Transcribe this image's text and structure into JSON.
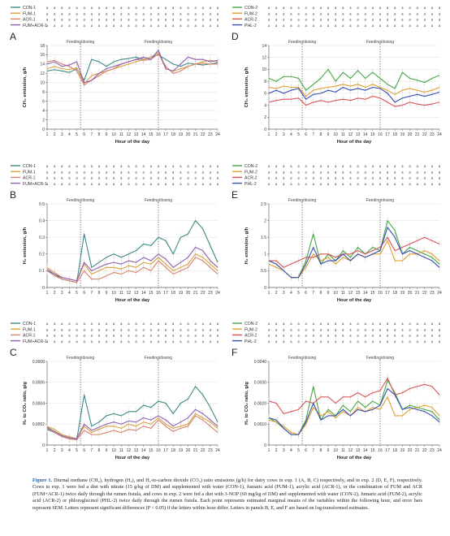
{
  "hours": [
    1,
    2,
    3,
    4,
    5,
    6,
    7,
    8,
    9,
    10,
    11,
    12,
    13,
    14,
    15,
    16,
    17,
    18,
    19,
    20,
    21,
    22,
    23,
    24
  ],
  "x_axis_label": "Hour of the day",
  "feeding_label": "Feeding/dosing",
  "feeding_hours": [
    5.5,
    16
  ],
  "caption": {
    "figure_label": "Figure 1.",
    "text": " Diurnal methane (CH₄), hydrogen (H₂), and H₂-to-carbon dioxide (CO₂) ratio emissions (g/h) for dairy cows in exp. 1 (A, B, C) respectively, and in exp. 2 (D, E, F), respectively. Cows in exp. 1 were fed a diet with nitrate (15 g/kg of DM) and supplemented with water (CON-1), fumaric acid (FUM-1), acrylic acid (ACR-1), or the combination of FUM and ACR (FUM+ACR-1) twice daily through the rumen fistula, and cows in exp. 2 were fed a diet with 3-NOP (60 mg/kg of DM) and supplemented with water (CON-2), fumaric acid (FUM-2), acrylic acid (ACR-2) or phloroglucinol (PHL-2) twice daily through the rumen fistula. Each point represents estimated marginal means of the variables within the following hour, and error bars represent SEM. Letters represent significant differences (P < 0.05) if the letters within hour differ. Letters in panels B, E, and F are based on log-transformed estimates."
  },
  "chart_data": [
    {
      "panel": "A",
      "type": "line",
      "ylabel": "CH₄ emission, g/h",
      "ylim": [
        0,
        18
      ],
      "yticks": [
        0,
        2,
        4,
        6,
        8,
        10,
        12,
        14,
        16,
        18
      ],
      "x": [
        1,
        2,
        3,
        4,
        5,
        6,
        7,
        8,
        9,
        10,
        11,
        12,
        13,
        14,
        15,
        16,
        17,
        18,
        19,
        20,
        21,
        22,
        23,
        24
      ],
      "legend": [
        "CON-1",
        "FUM-1",
        "ACR-1",
        "FUM+ACR-1"
      ],
      "letter_rows": [
        "aaaaaaaaaaaaaaaaaaaaaaaa",
        "aaaaaaaaaaaaaaaaaaaaaaaa",
        "aaaaaaaaaaaaaaaaaaaaaaaa",
        "aaaaaaaaaaaaaaaaaaaaaaaa"
      ],
      "series": [
        {
          "name": "CON-1",
          "color": "#3d8a85",
          "values": [
            12.5,
            12.8,
            12.5,
            12.2,
            13.0,
            10.5,
            15.0,
            14.5,
            13.5,
            14.5,
            15.0,
            15.2,
            15.5,
            15.0,
            15.5,
            16.0,
            15.0,
            14.0,
            13.5,
            14.2,
            14.0,
            13.8,
            14.0,
            14.3
          ]
        },
        {
          "name": "FUM-1",
          "color": "#d9a23c",
          "values": [
            13.0,
            13.5,
            13.0,
            12.8,
            13.2,
            9.8,
            11.5,
            12.0,
            12.5,
            13.0,
            13.5,
            14.0,
            14.5,
            15.0,
            15.5,
            16.5,
            13.0,
            12.5,
            13.0,
            13.5,
            14.0,
            14.5,
            14.8,
            14.5
          ]
        },
        {
          "name": "ACR-1",
          "color": "#d9826c",
          "values": [
            14.5,
            14.8,
            14.0,
            13.5,
            12.5,
            9.5,
            10.5,
            11.5,
            12.5,
            13.0,
            14.0,
            14.5,
            15.0,
            14.8,
            15.0,
            16.2,
            13.5,
            12.0,
            12.5,
            13.5,
            14.0,
            14.2,
            14.0,
            14.0
          ]
        },
        {
          "name": "FUM+ACR-1",
          "color": "#8d5fb0",
          "values": [
            14.0,
            14.5,
            13.5,
            13.8,
            14.5,
            10.0,
            10.5,
            12.0,
            13.0,
            13.5,
            14.0,
            14.5,
            15.0,
            15.5,
            15.0,
            17.0,
            13.0,
            12.5,
            14.0,
            15.5,
            15.0,
            15.0,
            14.5,
            14.8
          ]
        }
      ]
    },
    {
      "panel": "B",
      "type": "line",
      "ylabel": "H₂ emission, g/h",
      "ylim": [
        0,
        0.5
      ],
      "yticks": [
        0,
        0.1,
        0.2,
        0.3,
        0.4,
        0.5
      ],
      "x": [
        1,
        2,
        3,
        4,
        5,
        6,
        7,
        8,
        9,
        10,
        11,
        12,
        13,
        14,
        15,
        16,
        17,
        18,
        19,
        20,
        21,
        22,
        23,
        24
      ],
      "legend": [
        "CON-1",
        "FUM-1",
        "ACR-1",
        "FUM+ACR-1"
      ],
      "letter_rows": [
        "aaaaaaaaaaaaaaaaaaaaaaaa",
        "aaaaaaaaaaaaaaaaaaaaaaaa",
        "aaaaaaaaaaaaaaaaaaaaaaaa",
        "aaaaaaaaaaaaaaaaaaaaaaaa"
      ],
      "series": [
        {
          "name": "CON-1",
          "color": "#3d8a85",
          "values": [
            0.1,
            0.08,
            0.05,
            0.04,
            0.03,
            0.32,
            0.12,
            0.15,
            0.18,
            0.2,
            0.18,
            0.2,
            0.22,
            0.26,
            0.25,
            0.3,
            0.28,
            0.2,
            0.3,
            0.32,
            0.4,
            0.35,
            0.25,
            0.15
          ]
        },
        {
          "name": "FUM-1",
          "color": "#d9a23c",
          "values": [
            0.12,
            0.09,
            0.06,
            0.05,
            0.04,
            0.14,
            0.08,
            0.1,
            0.12,
            0.12,
            0.11,
            0.13,
            0.12,
            0.15,
            0.14,
            0.18,
            0.14,
            0.1,
            0.12,
            0.14,
            0.2,
            0.18,
            0.14,
            0.1
          ]
        },
        {
          "name": "ACR-1",
          "color": "#d9826c",
          "values": [
            0.1,
            0.07,
            0.05,
            0.04,
            0.03,
            0.1,
            0.05,
            0.05,
            0.07,
            0.09,
            0.08,
            0.1,
            0.09,
            0.12,
            0.1,
            0.16,
            0.12,
            0.08,
            0.1,
            0.12,
            0.18,
            0.16,
            0.12,
            0.08
          ]
        },
        {
          "name": "FUM+ACR-1",
          "color": "#8d5fb0",
          "values": [
            0.11,
            0.08,
            0.06,
            0.05,
            0.04,
            0.15,
            0.1,
            0.12,
            0.14,
            0.15,
            0.14,
            0.16,
            0.15,
            0.18,
            0.16,
            0.2,
            0.17,
            0.12,
            0.15,
            0.18,
            0.24,
            0.22,
            0.16,
            0.12
          ]
        }
      ]
    },
    {
      "panel": "C",
      "type": "line",
      "ylabel": "H₂ to CO₂ ratio, g/g",
      "ylim": [
        0,
        0.0008
      ],
      "yticks": [
        0,
        0.0002,
        0.0004,
        0.0006,
        0.0008
      ],
      "x": [
        1,
        2,
        3,
        4,
        5,
        6,
        7,
        8,
        9,
        10,
        11,
        12,
        13,
        14,
        15,
        16,
        17,
        18,
        19,
        20,
        21,
        22,
        23,
        24
      ],
      "legend": [
        "CON-1",
        "FUM-1",
        "ACR-1",
        "FUM+ACR-1"
      ],
      "letter_rows": [
        "aaaaaaaaaaaaaaaaaaaaaaaa",
        "aaaaaaaaaaaaaaaaaaaaaaaa",
        "aaaaaaaaaaaaaaaaaaaaaaaa",
        "aaaaaaaaaaaaaaaaaaaaaaaa"
      ],
      "series": [
        {
          "name": "CON-1",
          "color": "#3d8a85",
          "values": [
            0.00015,
            0.00012,
            8e-05,
            6e-05,
            5e-05,
            0.00048,
            0.00018,
            0.00022,
            0.00028,
            0.0003,
            0.00028,
            0.00032,
            0.00032,
            0.00038,
            0.00036,
            0.00042,
            0.0004,
            0.0003,
            0.0004,
            0.00044,
            0.00056,
            0.00048,
            0.00036,
            0.00022
          ]
        },
        {
          "name": "FUM-1",
          "color": "#d9a23c",
          "values": [
            0.00018,
            0.00015,
            0.0001,
            8e-05,
            6e-05,
            0.00018,
            0.00012,
            0.00015,
            0.00018,
            0.00018,
            0.00016,
            0.0002,
            0.00018,
            0.00022,
            0.0002,
            0.00026,
            0.0002,
            0.00016,
            0.00018,
            0.0002,
            0.0003,
            0.00026,
            0.00022,
            0.00016
          ]
        },
        {
          "name": "ACR-1",
          "color": "#d9826c",
          "values": [
            0.00016,
            0.00012,
            8e-05,
            6e-05,
            5e-05,
            0.00014,
            0.0001,
            0.0001,
            0.00012,
            0.00014,
            0.00012,
            0.00015,
            0.00014,
            0.00018,
            0.00016,
            0.00024,
            0.00018,
            0.00013,
            0.00016,
            0.00018,
            0.00028,
            0.00024,
            0.00018,
            0.00012
          ]
        },
        {
          "name": "FUM+ACR-1",
          "color": "#8d5fb0",
          "values": [
            0.00017,
            0.00013,
            9e-05,
            7e-05,
            6e-05,
            0.0002,
            0.00014,
            0.00017,
            0.0002,
            0.00022,
            0.0002,
            0.00023,
            0.00022,
            0.00026,
            0.00024,
            0.00028,
            0.00024,
            0.00018,
            0.00022,
            0.00026,
            0.00034,
            0.0003,
            0.00024,
            0.00018
          ]
        }
      ]
    },
    {
      "panel": "D",
      "type": "line",
      "ylabel": "CH₄ emission, g/h",
      "ylim": [
        0,
        14
      ],
      "yticks": [
        0,
        2,
        4,
        6,
        8,
        10,
        12,
        14
      ],
      "x": [
        1,
        2,
        3,
        4,
        5,
        6,
        7,
        8,
        9,
        10,
        11,
        12,
        13,
        14,
        15,
        16,
        17,
        18,
        19,
        20,
        21,
        22,
        23,
        24
      ],
      "legend": [
        "CON-2",
        "FUM-2",
        "ACR-2",
        "PHL-2"
      ],
      "letter_rows": [
        "aaaaaaaaaaaaaaaaaaaaaaaa",
        "aaaaaaaaaaaaaaaaaaaaaaaa",
        "aaaaaaaaaaaaaaaaaaaaaaaa",
        "aaaaaaaaaaaaaaaaaaaaaaaa"
      ],
      "series": [
        {
          "name": "CON-2",
          "color": "#45a845",
          "values": [
            8.5,
            8.0,
            8.8,
            8.8,
            8.5,
            6.5,
            7.5,
            8.5,
            10.0,
            8.0,
            9.5,
            8.5,
            9.8,
            8.5,
            9.5,
            8.5,
            7.5,
            6.8,
            9.5,
            8.5,
            8.2,
            7.8,
            8.5,
            9.0
          ]
        },
        {
          "name": "FUM-2",
          "color": "#e0a030",
          "values": [
            7.0,
            6.8,
            7.2,
            7.0,
            7.0,
            5.5,
            6.5,
            6.8,
            7.0,
            7.2,
            7.5,
            7.2,
            7.5,
            7.0,
            7.5,
            7.0,
            6.5,
            5.8,
            6.5,
            6.8,
            6.5,
            6.2,
            6.5,
            7.0
          ]
        },
        {
          "name": "ACR-2",
          "color": "#d85555",
          "values": [
            4.5,
            4.8,
            5.0,
            5.0,
            5.2,
            4.0,
            4.5,
            4.8,
            4.5,
            4.8,
            5.0,
            4.8,
            5.2,
            5.0,
            5.5,
            5.2,
            4.5,
            3.8,
            4.0,
            4.5,
            4.2,
            4.0,
            4.2,
            4.5
          ]
        },
        {
          "name": "PHL-2",
          "color": "#3a4fb0",
          "values": [
            6.0,
            6.5,
            6.0,
            6.5,
            6.8,
            5.0,
            5.8,
            6.0,
            6.5,
            6.2,
            7.0,
            6.5,
            6.8,
            6.5,
            7.0,
            6.8,
            6.0,
            4.5,
            5.2,
            5.5,
            5.8,
            5.5,
            5.8,
            6.2
          ]
        }
      ]
    },
    {
      "panel": "E",
      "type": "line",
      "ylabel": "H₂ emission, g/h",
      "ylim": [
        0,
        2.5
      ],
      "yticks": [
        0,
        0.5,
        1.0,
        1.5,
        2.0,
        2.5
      ],
      "x": [
        1,
        2,
        3,
        4,
        5,
        6,
        7,
        8,
        9,
        10,
        11,
        12,
        13,
        14,
        15,
        16,
        17,
        18,
        19,
        20,
        21,
        22,
        23,
        24
      ],
      "legend": [
        "CON-2",
        "FUM-2",
        "ACR-2",
        "PHL-2"
      ],
      "letter_rows": [
        "aaaaaaaaaaaaaaaaaaaaaaaa",
        "aaaaaaaaaaaaaaaaaaaaaaaa",
        "aaaaaaaaaaaaaaaaaaaaaaaa",
        "aaaaaaaaaaaaaaaaaaaaaaaa"
      ],
      "series": [
        {
          "name": "CON-2",
          "color": "#45a845",
          "values": [
            0.8,
            0.7,
            0.5,
            0.3,
            0.3,
            0.8,
            1.6,
            0.7,
            1.0,
            0.8,
            1.1,
            0.9,
            1.2,
            1.0,
            1.2,
            1.1,
            2.0,
            1.7,
            1.0,
            1.2,
            1.1,
            1.0,
            0.9,
            0.7
          ]
        },
        {
          "name": "FUM-2",
          "color": "#e0a030",
          "values": [
            0.7,
            0.6,
            0.5,
            0.3,
            0.3,
            0.6,
            1.0,
            0.8,
            0.9,
            0.7,
            0.9,
            0.8,
            1.0,
            0.9,
            1.0,
            1.0,
            1.4,
            0.8,
            0.8,
            1.0,
            1.0,
            1.1,
            1.0,
            0.8
          ]
        },
        {
          "name": "ACR-2",
          "color": "#d85555",
          "values": [
            0.8,
            0.8,
            0.6,
            0.7,
            0.8,
            0.9,
            0.9,
            1.0,
            1.0,
            0.9,
            1.0,
            1.0,
            1.1,
            1.0,
            1.1,
            1.2,
            1.5,
            1.1,
            1.2,
            1.3,
            1.4,
            1.5,
            1.4,
            1.3
          ]
        },
        {
          "name": "PHL-2",
          "color": "#3a4fb0",
          "values": [
            0.8,
            0.7,
            0.5,
            0.3,
            0.3,
            0.7,
            1.2,
            0.7,
            0.8,
            0.8,
            1.0,
            0.8,
            1.0,
            0.9,
            1.0,
            1.1,
            1.8,
            1.5,
            1.0,
            1.1,
            1.0,
            0.9,
            0.8,
            0.6
          ]
        }
      ]
    },
    {
      "panel": "F",
      "type": "line",
      "ylabel": "H₂ to CO₂ ratio, g/g",
      "ylim": [
        0,
        0.004
      ],
      "yticks": [
        0,
        0.001,
        0.002,
        0.003,
        0.004
      ],
      "x": [
        1,
        2,
        3,
        4,
        5,
        6,
        7,
        8,
        9,
        10,
        11,
        12,
        13,
        14,
        15,
        16,
        17,
        18,
        19,
        20,
        21,
        22,
        23,
        24
      ],
      "legend": [
        "CON-2",
        "FUM-2",
        "ACR-2",
        "PHL-2"
      ],
      "letter_rows": [
        "aaaaaaaaaaaaaaaaaaaaaaaa",
        "aaaaaaaaaaaaaaaaaaaaaaaa",
        "aaaaaaaaaaaaaaaaaaaaaaaa",
        "aaaaaaaaaaaaaaaaaaaaaaaa"
      ],
      "series": [
        {
          "name": "CON-2",
          "color": "#45a845",
          "values": [
            0.0013,
            0.0011,
            0.0008,
            0.0005,
            0.0005,
            0.0012,
            0.0028,
            0.0012,
            0.0017,
            0.0014,
            0.0019,
            0.0016,
            0.0021,
            0.0018,
            0.0021,
            0.0019,
            0.0031,
            0.0025,
            0.0017,
            0.0019,
            0.0018,
            0.0017,
            0.0016,
            0.0012
          ]
        },
        {
          "name": "FUM-2",
          "color": "#e0a030",
          "values": [
            0.0012,
            0.0011,
            0.0009,
            0.0006,
            0.0005,
            0.001,
            0.0018,
            0.0014,
            0.0016,
            0.0013,
            0.0016,
            0.0014,
            0.0018,
            0.0016,
            0.0018,
            0.0017,
            0.0023,
            0.0014,
            0.0014,
            0.0017,
            0.0018,
            0.0019,
            0.0018,
            0.0014
          ]
        },
        {
          "name": "ACR-2",
          "color": "#d85555",
          "values": [
            0.0021,
            0.002,
            0.0015,
            0.0016,
            0.0017,
            0.0021,
            0.002,
            0.0023,
            0.0023,
            0.002,
            0.0023,
            0.0023,
            0.0025,
            0.0023,
            0.0025,
            0.0026,
            0.0032,
            0.0024,
            0.0025,
            0.0027,
            0.0028,
            0.0029,
            0.0028,
            0.0024
          ]
        },
        {
          "name": "PHL-2",
          "color": "#3a4fb0",
          "values": [
            0.0013,
            0.0012,
            0.0008,
            0.0005,
            0.0005,
            0.0011,
            0.002,
            0.0012,
            0.0014,
            0.0014,
            0.0017,
            0.0014,
            0.0017,
            0.0016,
            0.0017,
            0.0019,
            0.0027,
            0.0024,
            0.0017,
            0.0018,
            0.0017,
            0.0016,
            0.0014,
            0.0011
          ]
        }
      ]
    }
  ]
}
